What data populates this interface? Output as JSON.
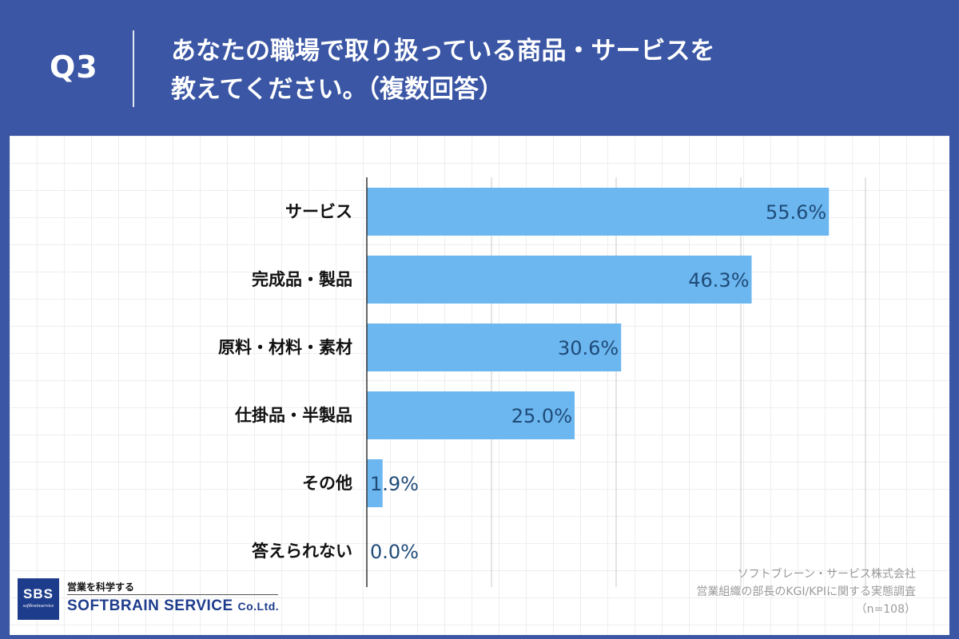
{
  "header": {
    "question_label": "Q3",
    "title_line1": "あなたの職場で取り扱っている商品・サービスを",
    "title_line2": "教えてください。（複数回答）"
  },
  "colors": {
    "header_bg": "#3a56a4",
    "bar": "#6cb7f0",
    "value_text": "#1f4b78"
  },
  "chart_data": {
    "type": "bar",
    "orientation": "horizontal",
    "categories": [
      "サービス",
      "完成品・製品",
      "原料・材料・素材",
      "仕掛品・半製品",
      "その他",
      "答えられない"
    ],
    "values": [
      55.6,
      46.3,
      30.6,
      25.0,
      1.9,
      0.0
    ],
    "value_labels": [
      "55.6%",
      "46.3%",
      "30.6%",
      "25.0%",
      "1.9%",
      "0.0%"
    ],
    "xlim": [
      0,
      70
    ],
    "gridline_step": 15,
    "grid": true,
    "legend": "none"
  },
  "source": {
    "line1": "ソフトブレーン・サービス株式会社",
    "line2": "営業組織の部長のKGI/KPIに関する実態調査",
    "line3": "（n=108）"
  },
  "logo": {
    "abbr": "SBS",
    "mini": "softbrainservice",
    "tagline": "営業を科学する",
    "name": "SOFTBRAIN SERVICE",
    "name_suffix": "Co.Ltd."
  }
}
